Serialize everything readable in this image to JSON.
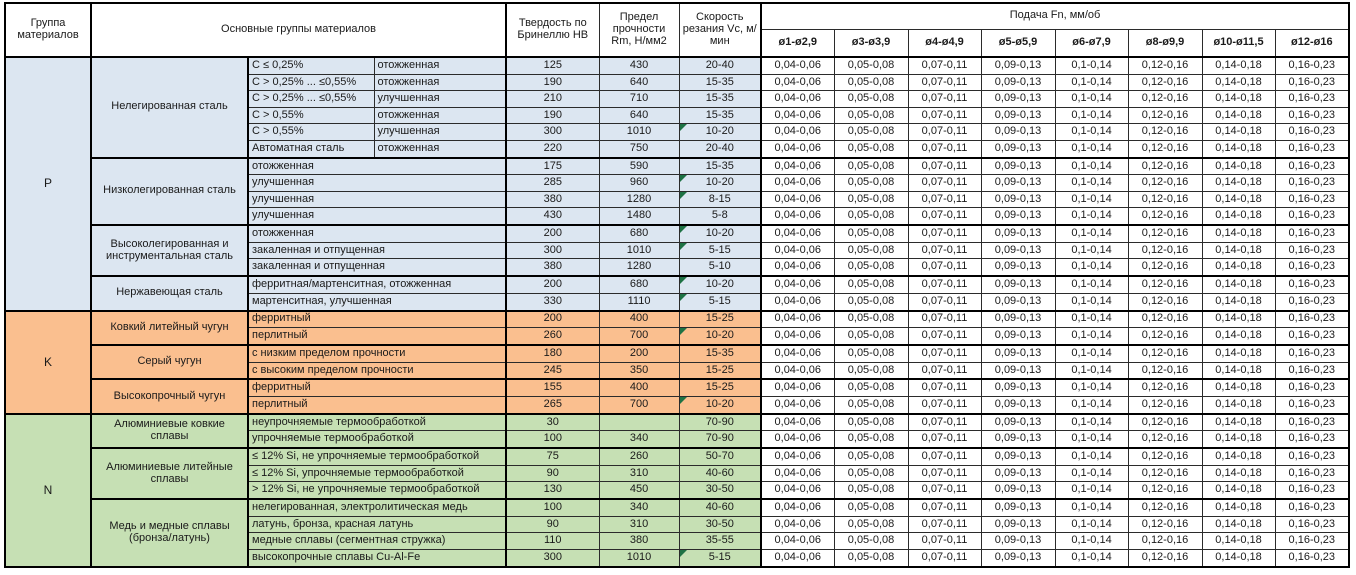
{
  "header": {
    "group": "Группа материалов",
    "main_groups": "Основные группы материалов",
    "hardness": "Твердость по Бринеллю HB",
    "strength": "Предел прочности Rm, Н/мм2",
    "speed": "Скорость резания Vc, м/мин",
    "feed_band": "Подача Fn, мм/об",
    "feed_cols": [
      "ø1-ø2,9",
      "ø3-ø3,9",
      "ø4-ø4,9",
      "ø5-ø5,9",
      "ø6-ø7,9",
      "ø8-ø9,9",
      "ø10-ø11,5",
      "ø12-ø16"
    ]
  },
  "feed_values": [
    "0,04-0,06",
    "0,05-0,08",
    "0,07-0,11",
    "0,09-0,13",
    "0,1-0,14",
    "0,12-0,16",
    "0,14-0,18",
    "0,16-0,23"
  ],
  "colors": {
    "P": "#dce6f1",
    "K": "#fabf8f",
    "N": "#c6e0b4",
    "note_marker": "#1e7244"
  },
  "sections": [
    {
      "letter": "P",
      "groups": [
        {
          "name": "Нелегированная сталь",
          "split": true,
          "rows": [
            {
              "spec": "C ≤ 0,25%",
              "cond": "отожженная",
              "hb": "125",
              "rm": "430",
              "vc": "20-40",
              "note": false
            },
            {
              "spec": "C > 0,25% ... ≤0,55%",
              "cond": "отожженная",
              "hb": "190",
              "rm": "640",
              "vc": "15-35",
              "note": false
            },
            {
              "spec": "C > 0,25% ... ≤0,55%",
              "cond": "улучшенная",
              "hb": "210",
              "rm": "710",
              "vc": "15-35",
              "note": false
            },
            {
              "spec": "C > 0,55%",
              "cond": "отожженная",
              "hb": "190",
              "rm": "640",
              "vc": "15-35",
              "note": false
            },
            {
              "spec": "C > 0,55%",
              "cond": "улучшенная",
              "hb": "300",
              "rm": "1010",
              "vc": "10-20",
              "note": true
            },
            {
              "spec": "Автоматная сталь",
              "cond": "отожженная",
              "hb": "220",
              "rm": "750",
              "vc": "20-40",
              "note": false
            }
          ]
        },
        {
          "name": "Низколегированная сталь",
          "split": false,
          "rows": [
            {
              "desc": "отожженная",
              "hb": "175",
              "rm": "590",
              "vc": "15-35",
              "note": false
            },
            {
              "desc": "улучшенная",
              "hb": "285",
              "rm": "960",
              "vc": "10-20",
              "note": true
            },
            {
              "desc": "улучшенная",
              "hb": "380",
              "rm": "1280",
              "vc": "8-15",
              "note": true
            },
            {
              "desc": "улучшенная",
              "hb": "430",
              "rm": "1480",
              "vc": "5-8",
              "note": false
            }
          ]
        },
        {
          "name": "Высоколегированная и инструментальная сталь",
          "split": false,
          "rows": [
            {
              "desc": "отожженная",
              "hb": "200",
              "rm": "680",
              "vc": "10-20",
              "note": true
            },
            {
              "desc": "закаленная и отпущенная",
              "hb": "300",
              "rm": "1010",
              "vc": "5-15",
              "note": true
            },
            {
              "desc": "закаленная и отпущенная",
              "hb": "380",
              "rm": "1280",
              "vc": "5-10",
              "note": false
            }
          ]
        },
        {
          "name": "Нержавеющая сталь",
          "split": false,
          "rows": [
            {
              "desc": "ферритная/мартенситная, отожженная",
              "hb": "200",
              "rm": "680",
              "vc": "10-20",
              "note": true
            },
            {
              "desc": "мартенситная, улучшенная",
              "hb": "330",
              "rm": "1110",
              "vc": "5-15",
              "note": true
            }
          ]
        }
      ]
    },
    {
      "letter": "K",
      "groups": [
        {
          "name": "Ковкий литейный чугун",
          "split": false,
          "rows": [
            {
              "desc": "ферритный",
              "hb": "200",
              "rm": "400",
              "vc": "15-25",
              "note": false
            },
            {
              "desc": "перлитный",
              "hb": "260",
              "rm": "700",
              "vc": "10-20",
              "note": true
            }
          ]
        },
        {
          "name": "Серый чугун",
          "split": false,
          "rows": [
            {
              "desc": "с низким пределом прочности",
              "hb": "180",
              "rm": "200",
              "vc": "15-35",
              "note": false
            },
            {
              "desc": "с высоким пределом прочности",
              "hb": "245",
              "rm": "350",
              "vc": "15-25",
              "note": false
            }
          ]
        },
        {
          "name": "Высокопрочный чугун",
          "split": false,
          "rows": [
            {
              "desc": "ферритный",
              "hb": "155",
              "rm": "400",
              "vc": "15-25",
              "note": false
            },
            {
              "desc": "перлитный",
              "hb": "265",
              "rm": "700",
              "vc": "10-20",
              "note": true
            }
          ]
        }
      ]
    },
    {
      "letter": "N",
      "groups": [
        {
          "name": "Алюминиевые ковкие сплавы",
          "split": false,
          "rows": [
            {
              "desc": "неупрочняемые термообработкой",
              "hb": "30",
              "rm": "",
              "vc": "70-90",
              "note": false
            },
            {
              "desc": "упрочняемые термообработкой",
              "hb": "100",
              "rm": "340",
              "vc": "70-90",
              "note": false
            }
          ]
        },
        {
          "name": "Алюминиевые литейные сплавы",
          "split": false,
          "rows": [
            {
              "desc": "≤ 12% Si, не упрочняемые термообработкой",
              "hb": "75",
              "rm": "260",
              "vc": "50-70",
              "note": false
            },
            {
              "desc": "≤ 12% Si, упрочняемые термообработкой",
              "hb": "90",
              "rm": "310",
              "vc": "40-60",
              "note": false
            },
            {
              "desc": "> 12% Si, не упрочняемые термообработкой",
              "hb": "130",
              "rm": "450",
              "vc": "30-50",
              "note": false
            }
          ]
        },
        {
          "name": "Медь и медные сплавы (бронза/латунь)",
          "split": false,
          "rows": [
            {
              "desc": "нелегированная, электролитическая медь",
              "hb": "100",
              "rm": "340",
              "vc": "40-60",
              "note": false
            },
            {
              "desc": "латунь, бронза, красная латунь",
              "hb": "90",
              "rm": "310",
              "vc": "30-50",
              "note": false
            },
            {
              "desc": "медные сплавы (сегментная стружка)",
              "hb": "110",
              "rm": "380",
              "vc": "35-55",
              "note": false
            },
            {
              "desc": "высокопрочные сплавы Cu-Al-Fe",
              "hb": "300",
              "rm": "1010",
              "vc": "5-15",
              "note": true
            }
          ]
        }
      ]
    }
  ]
}
